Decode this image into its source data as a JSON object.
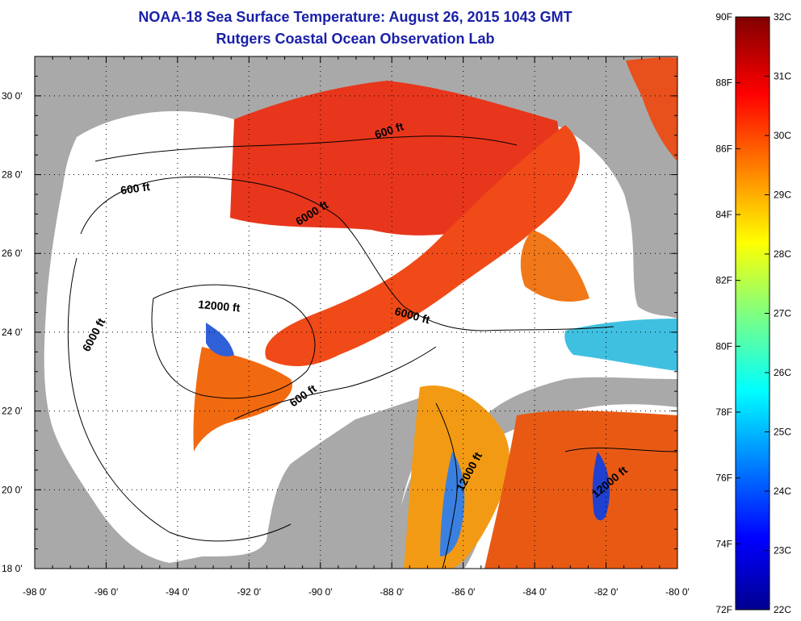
{
  "header": {
    "title": "NOAA-18 Sea Surface Temperature:  August 26, 2015 1043 GMT",
    "subtitle": "Rutgers Coastal Ocean Observation Lab"
  },
  "map": {
    "lon_range": [
      -98,
      -80
    ],
    "lat_range": [
      18,
      31
    ],
    "lon_ticks": [
      "-98 0'",
      "-96 0'",
      "-94 0'",
      "-92 0'",
      "-90 0'",
      "-88 0'",
      "-86 0'",
      "-84 0'",
      "-82 0'",
      "-80 0'"
    ],
    "lat_ticks": [
      "18 0'",
      "20 0'",
      "22 0'",
      "24 0'",
      "26 0'",
      "28 0'",
      "30 0'"
    ],
    "contour_labels": [
      "600 ft",
      "600 ft",
      "6000 ft",
      "12000 ft",
      "6000 ft",
      "6000 ft",
      "600 ft",
      "12000 ft",
      "12000 ft"
    ],
    "colors": {
      "land": "#a9a9a9",
      "no_data": "#ffffff",
      "frame": "#000000"
    }
  },
  "colorbar": {
    "f_labels": [
      "90F",
      "88F",
      "86F",
      "84F",
      "82F",
      "80F",
      "78F",
      "76F",
      "74F",
      "72F"
    ],
    "c_labels": [
      "32C",
      "31C",
      "30C",
      "29C",
      "28C",
      "27C",
      "26C",
      "25C",
      "24C",
      "23C",
      "22C"
    ],
    "colormap": "jet"
  }
}
